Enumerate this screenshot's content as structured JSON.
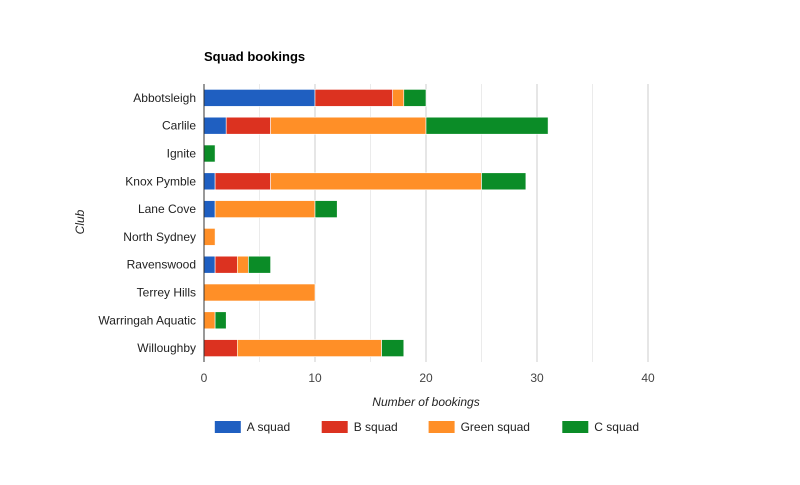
{
  "chart_data": {
    "type": "bar",
    "orientation": "horizontal",
    "stacked": true,
    "title": "Squad bookings",
    "xlabel": "Number of bookings",
    "ylabel": "Club",
    "xlim": [
      0,
      40
    ],
    "xticks": [
      0,
      10,
      20,
      30,
      40
    ],
    "grid": true,
    "legend_position": "bottom",
    "categories": [
      "Abbotsleigh",
      "Carlile",
      "Ignite",
      "Knox Pymble",
      "Lane Cove",
      "North Sydney",
      "Ravenswood",
      "Terrey Hills",
      "Warringah Aquatic",
      "Willoughby"
    ],
    "series": [
      {
        "name": "A squad",
        "color": "#1f5fc1",
        "values": [
          10,
          2,
          0,
          1,
          1,
          0,
          1,
          0,
          0,
          0
        ]
      },
      {
        "name": "B squad",
        "color": "#dc3220",
        "values": [
          7,
          4,
          0,
          5,
          0,
          0,
          2,
          0,
          0,
          3
        ]
      },
      {
        "name": "Green squad",
        "color": "#ff8f27",
        "values": [
          1,
          14,
          0,
          19,
          9,
          1,
          1,
          10,
          1,
          13
        ]
      },
      {
        "name": "C squad",
        "color": "#0b8c27",
        "values": [
          2,
          11,
          1,
          4,
          2,
          0,
          2,
          0,
          1,
          2
        ]
      }
    ]
  }
}
